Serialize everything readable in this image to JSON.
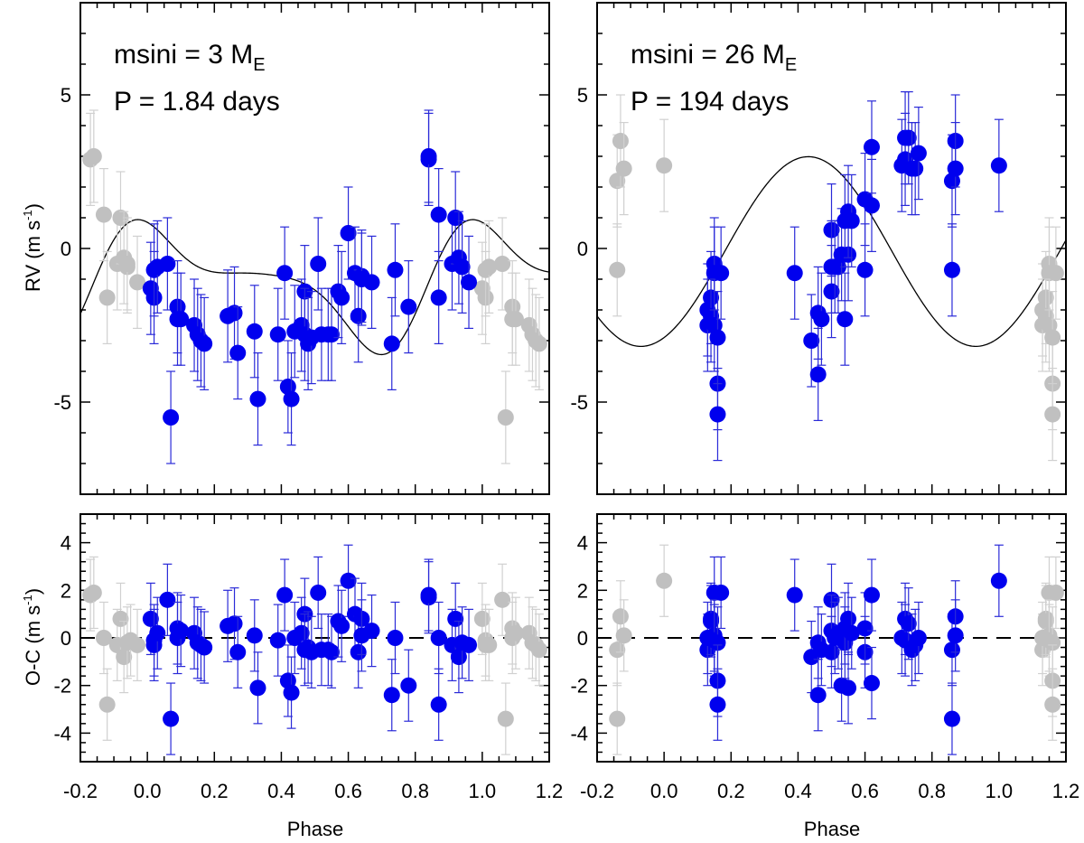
{
  "chart_data": [
    {
      "type": "scatter",
      "panel": "rv-left",
      "title": "",
      "annotations": {
        "msini_label": "msini = 3 M",
        "msini_subscript": "E",
        "period_label": "P = 1.84 days"
      },
      "xlabel": "",
      "ylabel": "RV (m s",
      "ylabel_sup": "-1",
      "ylabel_tail": ")",
      "xlim": [
        -0.2,
        1.2
      ],
      "ylim": [
        -8,
        8
      ],
      "xticks": [
        -0.2,
        0.0,
        0.2,
        0.4,
        0.6,
        0.8,
        1.0,
        1.2
      ],
      "yticks": [
        -5,
        0,
        5
      ],
      "yticklabels": [
        "-5",
        "0",
        "5"
      ],
      "model": {
        "kind": "fourier",
        "mean": -1.1,
        "c1": 1.1,
        "s1": 0.9,
        "c2": 0.85,
        "s2": -0.55,
        "c3": 0.0,
        "s3": -0.25,
        "color": "#000000"
      },
      "series": [
        {
          "name": "data",
          "color": "#0000ee",
          "x": [
            0.01,
            0.02,
            0.02,
            0.03,
            0.06,
            0.07,
            0.09,
            0.09,
            0.1,
            0.14,
            0.15,
            0.16,
            0.17,
            0.24,
            0.26,
            0.27,
            0.32,
            0.33,
            0.39,
            0.41,
            0.42,
            0.43,
            0.44,
            0.46,
            0.47,
            0.47,
            0.48,
            0.49,
            0.51,
            0.52,
            0.54,
            0.55,
            0.57,
            0.58,
            0.6,
            0.62,
            0.63,
            0.64,
            0.64,
            0.67,
            0.73,
            0.74,
            0.78,
            0.84,
            0.84,
            0.87,
            0.87,
            0.91,
            0.92,
            0.93,
            0.94,
            0.96
          ],
          "y": [
            -1.3,
            -1.6,
            -0.7,
            -0.6,
            -0.5,
            -5.5,
            -1.9,
            -2.3,
            -2.3,
            -2.5,
            -2.8,
            -3.0,
            -3.1,
            -2.2,
            -2.1,
            -3.4,
            -2.7,
            -4.9,
            -2.8,
            -0.8,
            -4.5,
            -4.9,
            -2.7,
            -2.5,
            -1.4,
            -2.8,
            -3.1,
            -2.9,
            -0.5,
            -2.8,
            -2.8,
            -2.8,
            -1.4,
            -1.6,
            0.5,
            -0.8,
            -2.2,
            -0.9,
            -1.0,
            -1.1,
            -3.1,
            -0.7,
            -1.9,
            2.9,
            3.0,
            1.1,
            -1.6,
            -0.5,
            1.0,
            -0.3,
            -0.6,
            -1.1
          ],
          "yerr": 1.5
        },
        {
          "name": "wrapped",
          "color": "#c0c0c0",
          "x": [
            -0.17,
            -0.16,
            -0.13,
            -0.12,
            -0.09,
            -0.08,
            -0.07,
            -0.06,
            -0.06,
            -0.03,
            1.0,
            1.01,
            1.01,
            1.02,
            1.06,
            1.07,
            1.09,
            1.09,
            1.1,
            1.14,
            1.15,
            1.16,
            1.17
          ],
          "y": [
            2.9,
            3.0,
            1.1,
            -1.6,
            -0.5,
            1.0,
            -0.3,
            -0.6,
            -0.5,
            -1.1,
            -1.3,
            -1.6,
            -0.7,
            -0.6,
            -0.5,
            -5.5,
            -1.9,
            -2.3,
            -2.3,
            -2.5,
            -2.8,
            -3.0,
            -3.1
          ],
          "yerr": 1.5
        }
      ]
    },
    {
      "type": "scatter",
      "panel": "rv-right",
      "title": "",
      "annotations": {
        "msini_label": "msini = 26 M",
        "msini_subscript": "E",
        "period_label": "P = 194 days"
      },
      "xlabel": "",
      "ylabel": "",
      "xlim": [
        -0.2,
        1.2
      ],
      "ylim": [
        -8,
        8
      ],
      "xticks": [
        -0.2,
        0.0,
        0.2,
        0.4,
        0.6,
        0.8,
        1.0,
        1.2
      ],
      "yticks": [
        -5,
        0,
        5
      ],
      "yticklabels": [
        "-5",
        "0",
        "5"
      ],
      "model": {
        "kind": "fourier",
        "mean": -0.1,
        "c1": -2.8,
        "s1": 1.3,
        "c2": 0.0,
        "s2": 0.0,
        "c3": 0.0,
        "s3": 0.0,
        "color": "#000000"
      },
      "series": [
        {
          "name": "data",
          "color": "#0000ee",
          "x": [
            0.13,
            0.13,
            0.14,
            0.14,
            0.15,
            0.15,
            0.15,
            0.16,
            0.16,
            0.16,
            0.17,
            0.39,
            0.44,
            0.46,
            0.46,
            0.47,
            0.5,
            0.5,
            0.5,
            0.51,
            0.52,
            0.53,
            0.54,
            0.54,
            0.55,
            0.55,
            0.56,
            0.6,
            0.6,
            0.62,
            0.62,
            0.71,
            0.72,
            0.72,
            0.73,
            0.74,
            0.75,
            0.76,
            0.86,
            0.86,
            0.87,
            0.87,
            1.0
          ],
          "y": [
            -2.5,
            -2.0,
            -1.6,
            -2.2,
            -0.5,
            -0.8,
            -2.5,
            -4.4,
            -5.4,
            -2.9,
            -0.8,
            -0.8,
            -3.0,
            -2.1,
            -4.1,
            -2.3,
            0.6,
            -0.6,
            -1.4,
            -0.6,
            -0.6,
            -0.2,
            -2.3,
            0.9,
            -0.2,
            1.2,
            0.9,
            1.6,
            -0.7,
            3.3,
            1.4,
            2.7,
            3.6,
            2.9,
            3.6,
            2.6,
            2.6,
            3.1,
            2.2,
            -0.7,
            3.5,
            2.6,
            2.7
          ],
          "yerr": 1.5
        },
        {
          "name": "wrapped",
          "color": "#c0c0c0",
          "x": [
            -0.14,
            -0.14,
            -0.13,
            -0.12,
            0.0,
            1.13,
            1.13,
            1.14,
            1.14,
            1.15,
            1.15,
            1.15,
            1.16,
            1.16,
            1.16,
            1.17
          ],
          "y": [
            2.2,
            -0.7,
            3.5,
            2.6,
            2.7,
            -2.5,
            -2.0,
            -1.6,
            -2.2,
            -0.5,
            -0.8,
            -2.5,
            -4.4,
            -5.4,
            -2.9,
            -0.8
          ],
          "yerr": 1.5
        }
      ]
    },
    {
      "type": "scatter",
      "panel": "oc-left",
      "title": "",
      "xlabel": "Phase",
      "ylabel": "O-C (m s",
      "ylabel_sup": "-1",
      "ylabel_tail": ")",
      "xlim": [
        -0.2,
        1.2
      ],
      "ylim": [
        -5.2,
        5.2
      ],
      "xticks": [
        -0.2,
        0.0,
        0.2,
        0.4,
        0.6,
        0.8,
        1.0,
        1.2
      ],
      "xticklabels": [
        "-0.2",
        "0.0",
        "0.2",
        "0.4",
        "0.6",
        "0.8",
        "1.0",
        "1.2"
      ],
      "yticks": [
        -4,
        -2,
        0,
        2,
        4
      ],
      "yticklabels": [
        "-4",
        "-2",
        "0",
        "2",
        "4"
      ],
      "zero_line": true,
      "series": [
        {
          "name": "data",
          "color": "#0000ee",
          "x": [
            0.01,
            0.02,
            0.02,
            0.03,
            0.06,
            0.07,
            0.09,
            0.09,
            0.1,
            0.14,
            0.15,
            0.16,
            0.17,
            0.24,
            0.26,
            0.27,
            0.32,
            0.33,
            0.39,
            0.41,
            0.42,
            0.43,
            0.44,
            0.46,
            0.47,
            0.47,
            0.48,
            0.49,
            0.51,
            0.52,
            0.54,
            0.55,
            0.57,
            0.58,
            0.6,
            0.62,
            0.63,
            0.64,
            0.64,
            0.67,
            0.73,
            0.74,
            0.78,
            0.84,
            0.84,
            0.87,
            0.87,
            0.91,
            0.92,
            0.93,
            0.94,
            0.96
          ],
          "y": [
            0.8,
            -0.1,
            -0.3,
            0.2,
            1.6,
            -3.4,
            0.4,
            0.0,
            0.3,
            0.2,
            -0.2,
            -0.3,
            -0.4,
            0.5,
            0.6,
            -0.6,
            0.1,
            -2.1,
            -0.1,
            1.8,
            -1.8,
            -2.3,
            0.0,
            0.2,
            1.0,
            -0.5,
            -0.4,
            -0.6,
            1.9,
            -0.5,
            -0.5,
            -0.6,
            0.7,
            0.5,
            2.4,
            1.0,
            -0.6,
            0.8,
            0.1,
            0.3,
            -2.4,
            0.0,
            -2.0,
            1.7,
            1.8,
            0.0,
            -2.8,
            -0.3,
            0.8,
            -0.8,
            -0.2,
            -0.3
          ],
          "yerr": 1.5
        },
        {
          "name": "wrapped",
          "color": "#c0c0c0",
          "x": [
            -0.17,
            -0.16,
            -0.13,
            -0.12,
            -0.09,
            -0.08,
            -0.07,
            -0.06,
            -0.05,
            -0.03,
            1.0,
            1.01,
            1.01,
            1.02,
            1.06,
            1.07,
            1.09,
            1.09,
            1.1,
            1.14,
            1.15,
            1.16,
            1.17
          ],
          "y": [
            1.8,
            1.9,
            0.0,
            -2.8,
            -0.3,
            0.8,
            -0.8,
            -0.2,
            -0.1,
            -0.3,
            0.8,
            -0.1,
            -0.3,
            -0.3,
            1.6,
            -3.4,
            0.4,
            0.0,
            0.2,
            0.2,
            -0.2,
            -0.3,
            -0.5
          ],
          "yerr": 1.5
        }
      ]
    },
    {
      "type": "scatter",
      "panel": "oc-right",
      "title": "",
      "xlabel": "Phase",
      "ylabel": "",
      "xlim": [
        -0.2,
        1.2
      ],
      "ylim": [
        -5.2,
        5.2
      ],
      "xticks": [
        -0.2,
        0.0,
        0.2,
        0.4,
        0.6,
        0.8,
        1.0,
        1.2
      ],
      "xticklabels": [
        "-0.2",
        "0.0",
        "0.2",
        "0.4",
        "0.6",
        "0.8",
        "1.0",
        "1.2"
      ],
      "yticks": [
        -4,
        -2,
        0,
        2,
        4
      ],
      "yticklabels": [
        "-4",
        "-2",
        "0",
        "2",
        "4"
      ],
      "zero_line": true,
      "series": [
        {
          "name": "data",
          "color": "#0000ee",
          "x": [
            0.13,
            0.13,
            0.14,
            0.14,
            0.15,
            0.15,
            0.15,
            0.16,
            0.16,
            0.16,
            0.17,
            0.39,
            0.44,
            0.46,
            0.46,
            0.47,
            0.5,
            0.5,
            0.5,
            0.51,
            0.52,
            0.53,
            0.54,
            0.54,
            0.55,
            0.55,
            0.56,
            0.6,
            0.6,
            0.62,
            0.62,
            0.71,
            0.72,
            0.72,
            0.73,
            0.74,
            0.75,
            0.76,
            0.86,
            0.86,
            0.87,
            0.87,
            1.0
          ],
          "y": [
            -0.5,
            0.0,
            0.8,
            0.7,
            1.9,
            0.1,
            -0.1,
            -0.2,
            -1.8,
            -2.8,
            1.9,
            1.8,
            -0.8,
            -0.2,
            -2.4,
            -0.5,
            1.6,
            0.3,
            -0.6,
            0.0,
            0.2,
            -2.0,
            -0.2,
            0.4,
            -2.1,
            0.8,
            0.2,
            -0.6,
            0.4,
            -1.9,
            1.8,
            0.0,
            0.8,
            -0.1,
            0.6,
            -0.5,
            -0.3,
            0.0,
            -0.5,
            -3.4,
            0.9,
            0.1,
            2.4
          ],
          "yerr": 1.5
        },
        {
          "name": "wrapped",
          "color": "#c0c0c0",
          "x": [
            -0.14,
            -0.14,
            -0.13,
            -0.12,
            0.0,
            1.13,
            1.13,
            1.14,
            1.14,
            1.15,
            1.15,
            1.15,
            1.16,
            1.16,
            1.16,
            1.17
          ],
          "y": [
            -0.5,
            -3.4,
            0.9,
            0.1,
            2.4,
            -0.5,
            0.0,
            0.8,
            0.7,
            1.9,
            0.1,
            -0.1,
            -0.2,
            -1.8,
            -2.8,
            1.9
          ],
          "yerr": 1.5
        }
      ]
    }
  ]
}
